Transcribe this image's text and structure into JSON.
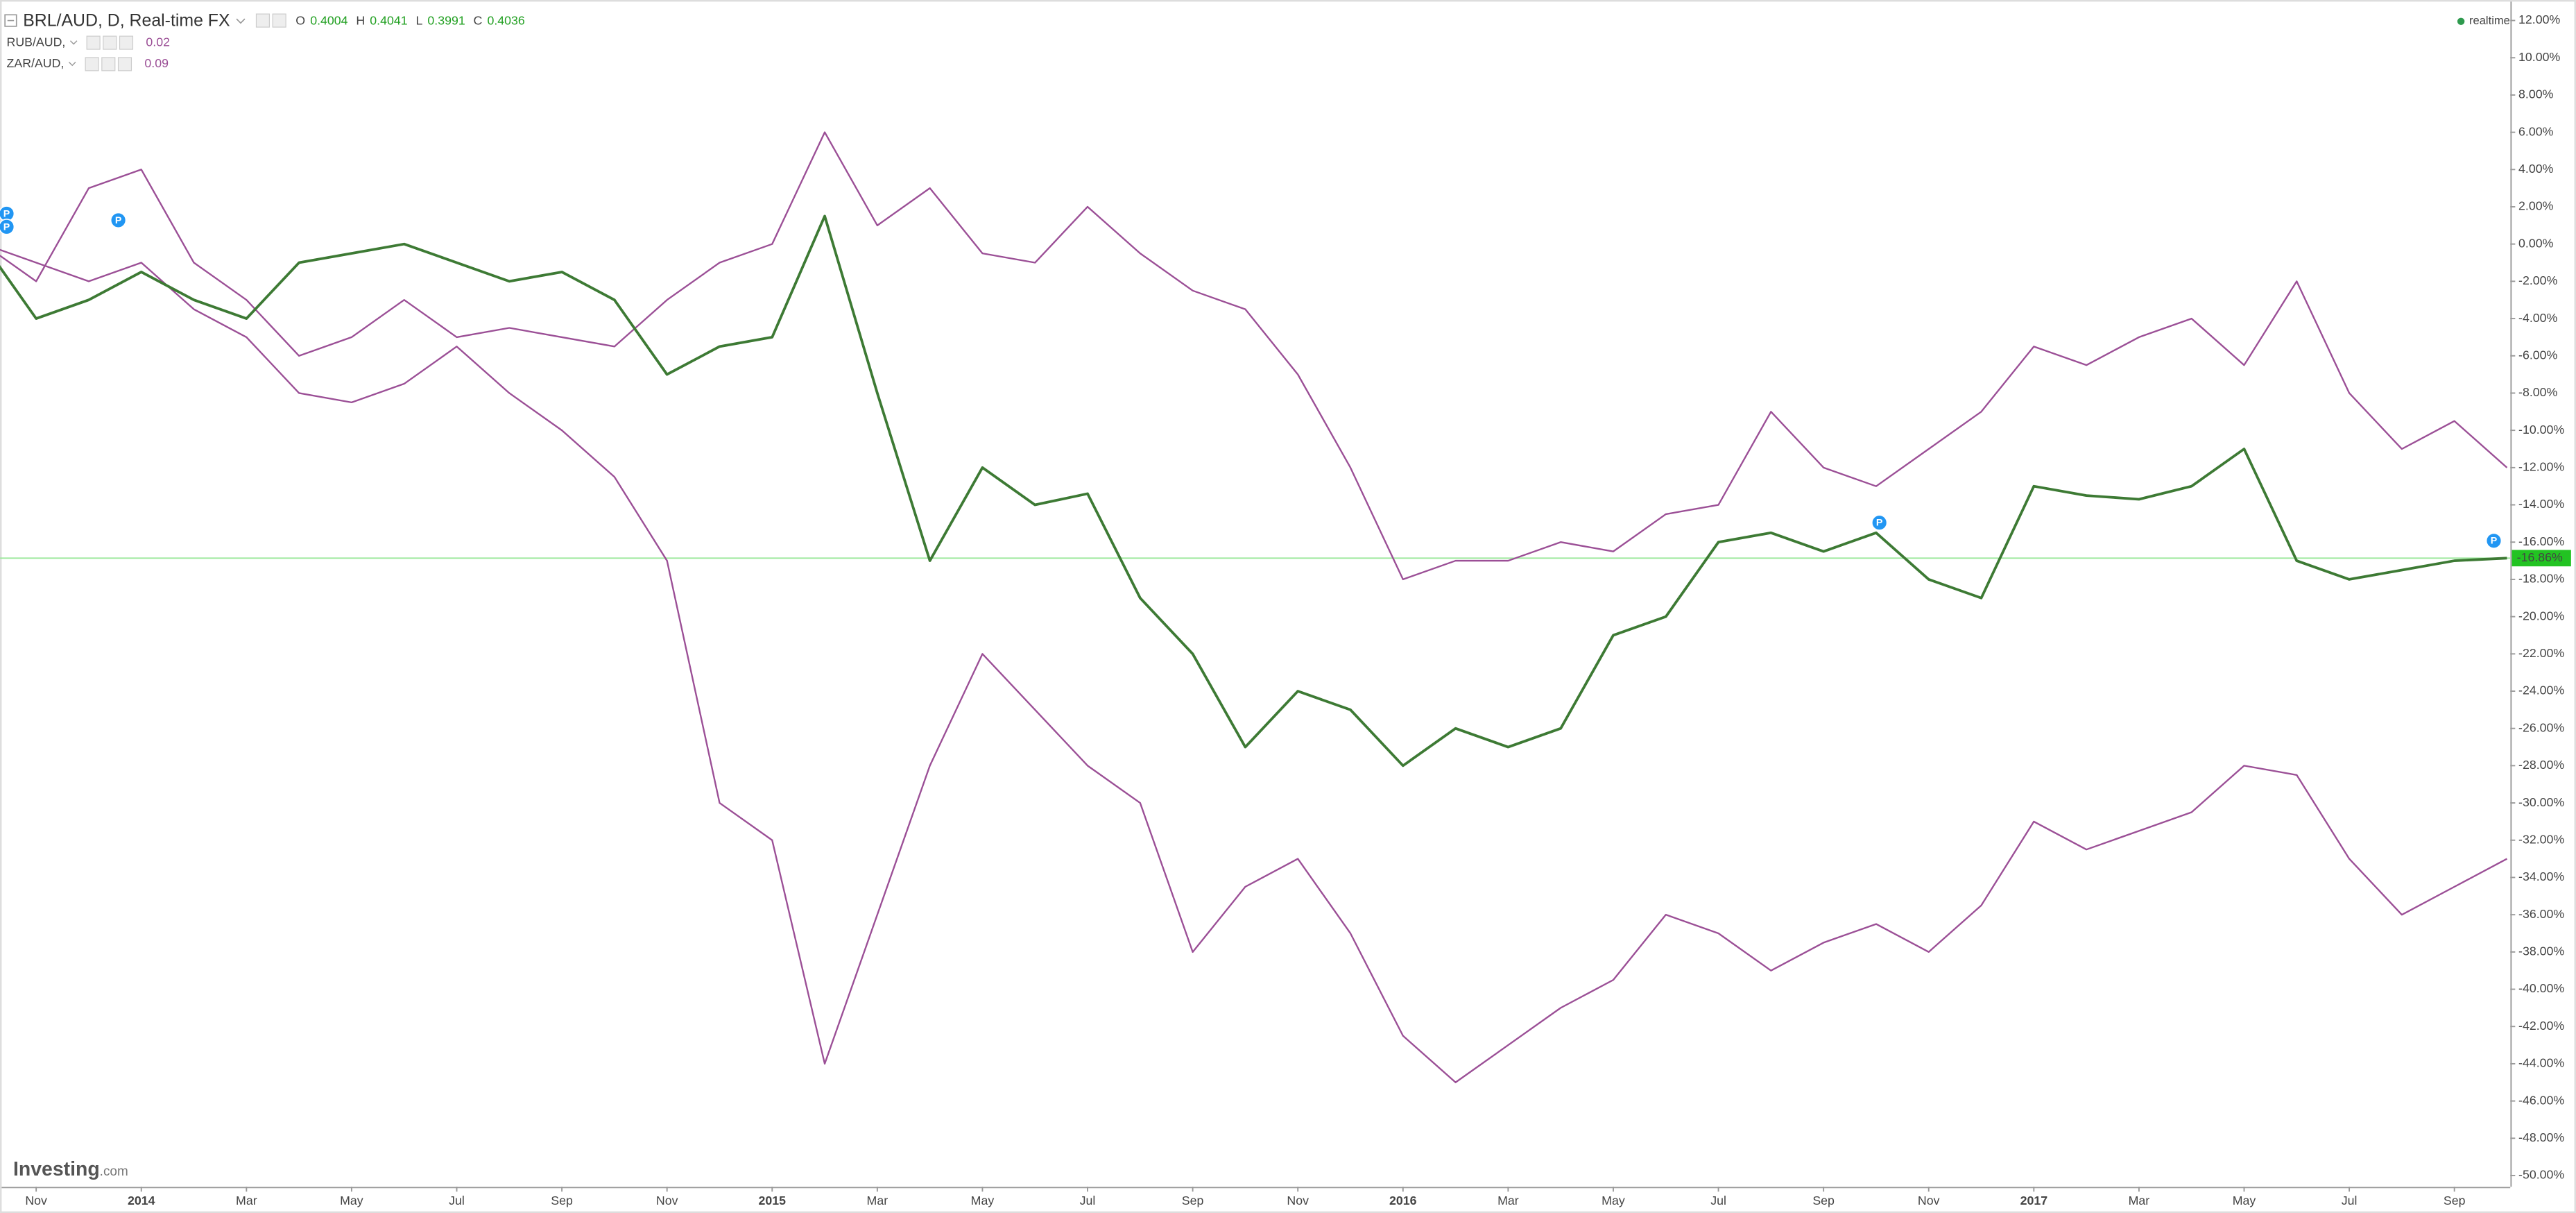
{
  "chart_data": {
    "type": "line",
    "header": {
      "ohlc": [
        {
          "key": "O",
          "value": 0.4004
        },
        {
          "key": "H",
          "value": 0.4041
        },
        {
          "key": "L",
          "value": 0.3991
        },
        {
          "key": "C",
          "value": 0.4036
        }
      ],
      "compare_values": [
        0.02,
        0.09
      ]
    },
    "x": [
      "2013-10",
      "2013-11",
      "2013-12",
      "2014-01",
      "2014-02",
      "2014-03",
      "2014-04",
      "2014-05",
      "2014-06",
      "2014-07",
      "2014-08",
      "2014-09",
      "2014-10",
      "2014-11",
      "2014-12",
      "2015-01",
      "2015-02",
      "2015-03",
      "2015-04",
      "2015-05",
      "2015-06",
      "2015-07",
      "2015-08",
      "2015-09",
      "2015-10",
      "2015-11",
      "2015-12",
      "2016-01",
      "2016-02",
      "2016-03",
      "2016-04",
      "2016-05",
      "2016-06",
      "2016-07",
      "2016-08",
      "2016-09",
      "2016-10",
      "2016-11",
      "2016-12",
      "2017-01",
      "2017-02",
      "2017-03",
      "2017-04",
      "2017-05",
      "2017-06",
      "2017-07",
      "2017-08",
      "2017-09",
      "2017-10"
    ],
    "series": [
      {
        "name": "BRL/AUD, D, Real-time FX",
        "color": "#3d7a34",
        "values": [
          0,
          -4,
          -3,
          -1.5,
          -3,
          -4,
          -1,
          -0.5,
          0,
          -1,
          -2,
          -1.5,
          -3,
          -7,
          -5.5,
          -5,
          1.5,
          -8,
          -17,
          -12,
          -14,
          -13.4,
          -19,
          -22,
          -27,
          -24,
          -25,
          -28,
          -26,
          -27,
          -26,
          -21,
          -20,
          -16,
          -15.5,
          -16.5,
          -15.5,
          -18,
          -19,
          -13,
          -13.5,
          -13.7,
          -13,
          -11,
          -17,
          -18,
          -17.5,
          -17,
          -16.86
        ]
      },
      {
        "name": "RUB/AUD,",
        "color": "#9b4f96",
        "values": [
          0,
          -1,
          -2,
          -1,
          -3.5,
          -5,
          -8,
          -8.5,
          -7.5,
          -5.5,
          -8,
          -10,
          -12.5,
          -17,
          -30,
          -32,
          -44,
          -36,
          -28,
          -22,
          -25,
          -28,
          -30,
          -38,
          -34.5,
          -33,
          -37,
          -42.5,
          -45,
          -43,
          -41,
          -39.5,
          -36,
          -37,
          -39,
          -37.5,
          -36.5,
          -38,
          -35.5,
          -31,
          -32.5,
          -31.5,
          -30.5,
          -28,
          -28.5,
          -33,
          -36,
          -34.5,
          -33
        ]
      },
      {
        "name": "ZAR/AUD,",
        "color": "#9b4f96",
        "values": [
          0,
          -2,
          3,
          4,
          -1,
          -3,
          -6,
          -5,
          -3,
          -5,
          -4.5,
          -5,
          -5.5,
          -3,
          -1,
          0,
          6,
          1,
          3,
          -0.5,
          -1,
          2,
          -0.5,
          -2.5,
          -3.5,
          -7,
          -12,
          -18,
          -17,
          -17,
          -16,
          -16.5,
          -14.5,
          -14,
          -9,
          -12,
          -13,
          -11,
          -9,
          -5.5,
          -6.5,
          -5,
          -4,
          -6.5,
          -2,
          -8,
          -11,
          -9.5,
          -12
        ]
      }
    ],
    "current_value": {
      "value": -16.86,
      "label": "-16.86%",
      "color": "#22c322"
    },
    "xlim": [
      "2013-10",
      "2017-10"
    ],
    "xticks": [
      {
        "value": "2013-11",
        "label": "Nov"
      },
      {
        "value": "2014-01",
        "label": "2014"
      },
      {
        "value": "2014-03",
        "label": "Mar"
      },
      {
        "value": "2014-05",
        "label": "May"
      },
      {
        "value": "2014-07",
        "label": "Jul"
      },
      {
        "value": "2014-09",
        "label": "Sep"
      },
      {
        "value": "2014-11",
        "label": "Nov"
      },
      {
        "value": "2015-01",
        "label": "2015"
      },
      {
        "value": "2015-03",
        "label": "Mar"
      },
      {
        "value": "2015-05",
        "label": "May"
      },
      {
        "value": "2015-07",
        "label": "Jul"
      },
      {
        "value": "2015-09",
        "label": "Sep"
      },
      {
        "value": "2015-11",
        "label": "Nov"
      },
      {
        "value": "2016-01",
        "label": "2016"
      },
      {
        "value": "2016-03",
        "label": "Mar"
      },
      {
        "value": "2016-05",
        "label": "May"
      },
      {
        "value": "2016-07",
        "label": "Jul"
      },
      {
        "value": "2016-09",
        "label": "Sep"
      },
      {
        "value": "2016-11",
        "label": "Nov"
      },
      {
        "value": "2017-01",
        "label": "2017"
      },
      {
        "value": "2017-03",
        "label": "Mar"
      },
      {
        "value": "2017-05",
        "label": "May"
      },
      {
        "value": "2017-07",
        "label": "Jul"
      },
      {
        "value": "2017-09",
        "label": "Sep"
      }
    ],
    "ylim": [
      -50.6,
      13.1
    ],
    "yticks": [
      {
        "value": 12,
        "label": "12.00%"
      },
      {
        "value": 10,
        "label": "10.00%"
      },
      {
        "value": 8,
        "label": "8.00%"
      },
      {
        "value": 6,
        "label": "6.00%"
      },
      {
        "value": 4,
        "label": "4.00%"
      },
      {
        "value": 2,
        "label": "2.00%"
      },
      {
        "value": 0,
        "label": "0.00%"
      },
      {
        "value": -2,
        "label": "-2.00%"
      },
      {
        "value": -4,
        "label": "-4.00%"
      },
      {
        "value": -6,
        "label": "-6.00%"
      },
      {
        "value": -8,
        "label": "-8.00%"
      },
      {
        "value": -10,
        "label": "-10.00%"
      },
      {
        "value": -12,
        "label": "-12.00%"
      },
      {
        "value": -14,
        "label": "-14.00%"
      },
      {
        "value": -16,
        "label": "-16.00%"
      },
      {
        "value": -18,
        "label": "-18.00%"
      },
      {
        "value": -20,
        "label": "-20.00%"
      },
      {
        "value": -22,
        "label": "-22.00%"
      },
      {
        "value": -24,
        "label": "-24.00%"
      },
      {
        "value": -26,
        "label": "-26.00%"
      },
      {
        "value": -28,
        "label": "-28.00%"
      },
      {
        "value": -30,
        "label": "-30.00%"
      },
      {
        "value": -32,
        "label": "-32.00%"
      },
      {
        "value": -34,
        "label": "-34.00%"
      },
      {
        "value": -36,
        "label": "-36.00%"
      },
      {
        "value": -38,
        "label": "-38.00%"
      },
      {
        "value": -40,
        "label": "-40.00%"
      },
      {
        "value": -42,
        "label": "-42.00%"
      },
      {
        "value": -44,
        "label": "-44.00%"
      },
      {
        "value": -46,
        "label": "-46.00%"
      },
      {
        "value": -48,
        "label": "-48.00%"
      },
      {
        "value": -50,
        "label": "-50.00%"
      }
    ],
    "grid": false,
    "event_marker_label": "P",
    "branding": {
      "logo": "Investing",
      "logo_suffix": ".com",
      "status": "realtime"
    }
  }
}
